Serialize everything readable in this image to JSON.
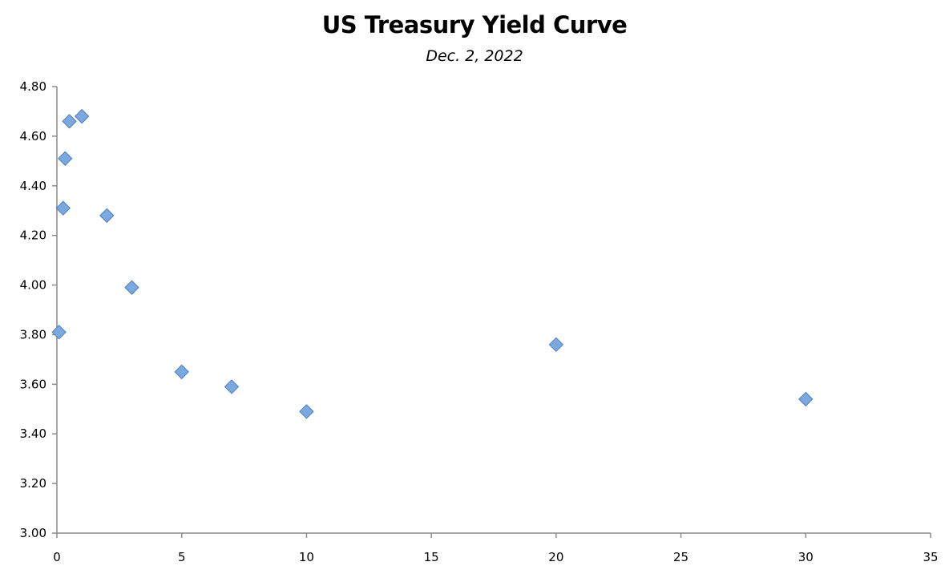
{
  "chart_data": {
    "type": "scatter",
    "title": "US Treasury Yield Curve",
    "subtitle": "Dec. 2, 2022",
    "xlabel": "",
    "ylabel": "",
    "xlim": [
      0,
      35
    ],
    "ylim": [
      3.0,
      4.8
    ],
    "xticks": [
      0,
      5,
      10,
      15,
      20,
      25,
      30,
      35
    ],
    "yticks": [
      3.0,
      3.2,
      3.4,
      3.6,
      3.8,
      4.0,
      4.2,
      4.4,
      4.6,
      4.8
    ],
    "ytick_format": "fixed2",
    "grid": false,
    "legend": "none",
    "marker": "diamond",
    "marker_color": "#7aa9df",
    "marker_edge_color": "#4f7fbf",
    "series": [
      {
        "x": [
          0.083,
          0.25,
          0.33,
          0.5,
          1,
          2,
          3,
          5,
          7,
          10,
          20,
          30
        ],
        "y": [
          3.81,
          4.31,
          4.51,
          4.66,
          4.68,
          4.28,
          3.99,
          3.65,
          3.59,
          3.49,
          3.76,
          3.54
        ]
      }
    ]
  }
}
